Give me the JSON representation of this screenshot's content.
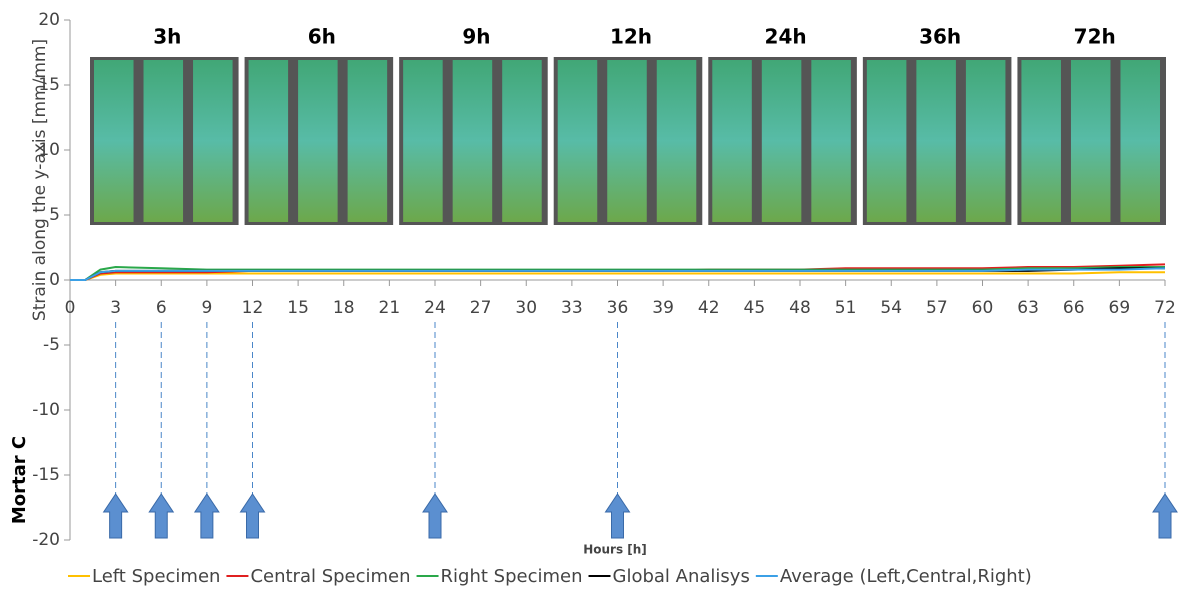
{
  "chart_data": {
    "type": "line",
    "y_label": "Strain along the y-axis [mm/mm]",
    "side_label": "Mortar C",
    "x_label": "Hours [h]",
    "x": [
      0,
      1,
      2,
      3,
      6,
      9,
      12,
      15,
      18,
      21,
      24,
      27,
      30,
      33,
      36,
      39,
      42,
      45,
      48,
      51,
      54,
      57,
      60,
      63,
      66,
      69,
      72
    ],
    "series": [
      {
        "name": "Left Specimen",
        "color": "#ffc000",
        "values": [
          0,
          0,
          0.4,
          0.5,
          0.5,
          0.5,
          0.5,
          0.5,
          0.5,
          0.5,
          0.5,
          0.5,
          0.5,
          0.5,
          0.5,
          0.5,
          0.5,
          0.5,
          0.5,
          0.5,
          0.5,
          0.5,
          0.5,
          0.5,
          0.5,
          0.6,
          0.6
        ]
      },
      {
        "name": "Central Specimen",
        "color": "#e02020",
        "values": [
          0,
          0,
          0.5,
          0.6,
          0.6,
          0.6,
          0.7,
          0.7,
          0.7,
          0.7,
          0.7,
          0.7,
          0.7,
          0.7,
          0.7,
          0.7,
          0.8,
          0.8,
          0.8,
          0.9,
          0.9,
          0.9,
          0.9,
          1.0,
          1.0,
          1.1,
          1.2
        ]
      },
      {
        "name": "Right Specimen",
        "color": "#2aa84a",
        "values": [
          0,
          0,
          0.8,
          1.0,
          0.9,
          0.8,
          0.8,
          0.8,
          0.8,
          0.8,
          0.8,
          0.8,
          0.8,
          0.8,
          0.8,
          0.8,
          0.8,
          0.8,
          0.8,
          0.8,
          0.8,
          0.8,
          0.8,
          0.9,
          0.9,
          1.0,
          1.0
        ]
      },
      {
        "name": "Global Analisys",
        "color": "#000000",
        "values": [
          0,
          0,
          0.6,
          0.7,
          0.7,
          0.7,
          0.7,
          0.7,
          0.7,
          0.7,
          0.7,
          0.7,
          0.7,
          0.7,
          0.7,
          0.7,
          0.7,
          0.7,
          0.7,
          0.7,
          0.7,
          0.7,
          0.7,
          0.7,
          0.8,
          0.9,
          0.9
        ]
      },
      {
        "name": "Average (Left,Central,Right)",
        "color": "#3ba0e6",
        "values": [
          0,
          0,
          0.6,
          0.7,
          0.7,
          0.7,
          0.7,
          0.7,
          0.7,
          0.7,
          0.7,
          0.7,
          0.7,
          0.7,
          0.7,
          0.7,
          0.7,
          0.7,
          0.7,
          0.7,
          0.7,
          0.7,
          0.7,
          0.8,
          0.8,
          0.8,
          0.9
        ]
      }
    ],
    "annotations": [
      {
        "x": 3,
        "label": "3h"
      },
      {
        "x": 6,
        "label": "6h"
      },
      {
        "x": 9,
        "label": "9h"
      },
      {
        "x": 12,
        "label": "12h"
      },
      {
        "x": 24,
        "label": "24h"
      },
      {
        "x": 36,
        "label": "36h"
      },
      {
        "x": 72,
        "label": "72h"
      }
    ],
    "xlim": [
      0,
      72
    ],
    "xticks": [
      0,
      3,
      6,
      9,
      12,
      15,
      18,
      21,
      24,
      27,
      30,
      33,
      36,
      39,
      42,
      45,
      48,
      51,
      54,
      57,
      60,
      63,
      66,
      69,
      72
    ],
    "ylim": [
      -20,
      20
    ],
    "yticks": [
      -20,
      -15,
      -10,
      -5,
      0,
      5,
      10,
      15,
      20
    ]
  }
}
